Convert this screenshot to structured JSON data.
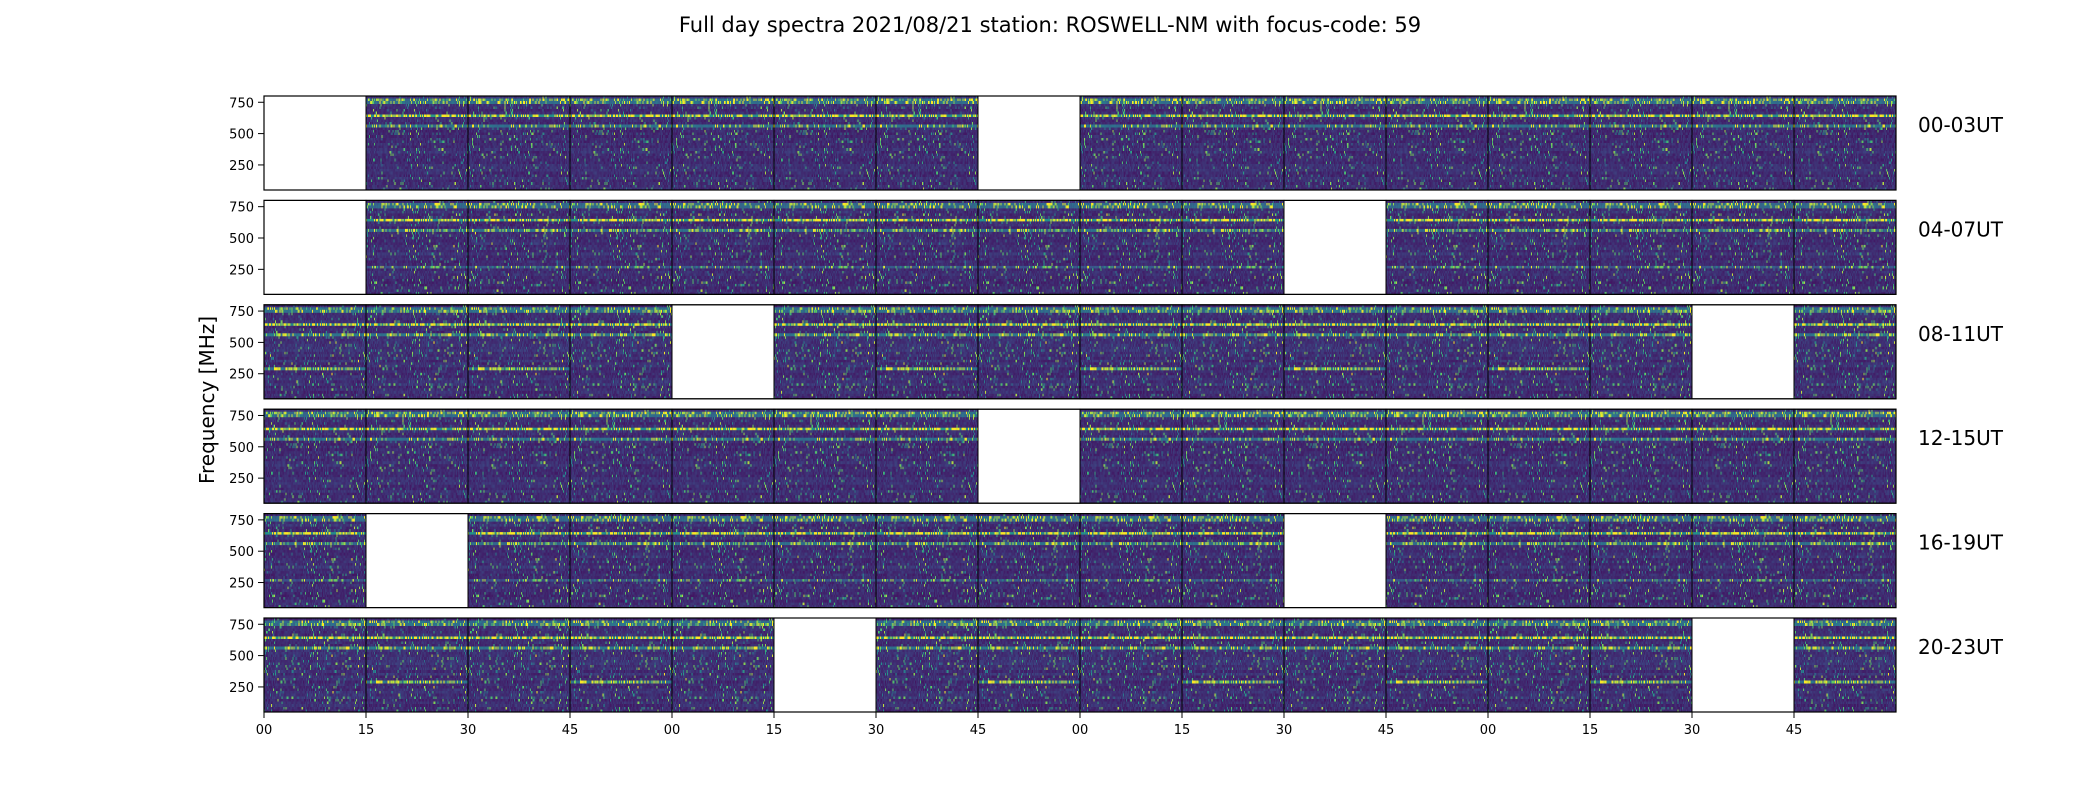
{
  "chart_data": {
    "type": "heatmap",
    "title": "Full day spectra 2021/08/21 station: ROSWELL-NM with focus-code: 59",
    "ylabel": "Frequency [MHz]",
    "xlabel": "",
    "ylim": [
      50,
      800
    ],
    "y_ticks": [
      250,
      500,
      750
    ],
    "x_tick_labels": [
      "00",
      "15",
      "30",
      "45",
      "00",
      "15",
      "30",
      "45",
      "00",
      "15",
      "30",
      "45",
      "00",
      "15",
      "30",
      "45"
    ],
    "colormap": [
      "#440154",
      "#3b528b",
      "#21918c",
      "#5ec962",
      "#fde725"
    ],
    "panel_minutes": 15,
    "rows": [
      {
        "label": "00-03UT",
        "missing_panels": [
          0,
          7
        ]
      },
      {
        "label": "04-07UT",
        "missing_panels": [
          0,
          10
        ]
      },
      {
        "label": "08-11UT",
        "missing_panels": [
          4,
          14
        ]
      },
      {
        "label": "12-15UT",
        "missing_panels": [
          7
        ]
      },
      {
        "label": "16-19UT",
        "missing_panels": [
          1,
          10
        ]
      },
      {
        "label": "20-23UT",
        "missing_panels": [
          5,
          14
        ]
      }
    ],
    "bright_bands_mhz": [
      640,
      560,
      760
    ],
    "grid": false,
    "legend": "none"
  }
}
